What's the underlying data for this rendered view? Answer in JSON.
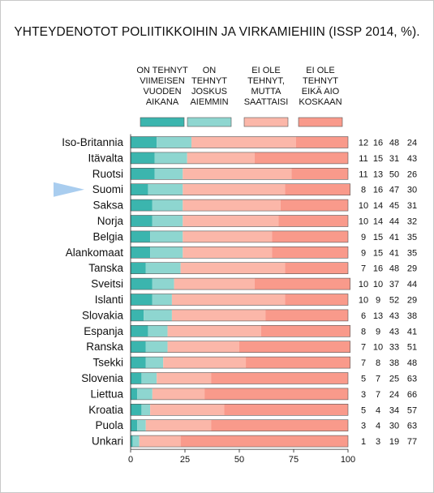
{
  "chart_data": {
    "type": "bar",
    "stacked": true,
    "orientation": "horizontal",
    "title": "YHTEYDENOTOT POLIITIKKOIHIN JA VIRKAMIEHIIN (ISSP 2014, %).",
    "categories": [
      "Iso-Britannia",
      "Itävalta",
      "Ruotsi",
      "Suomi",
      "Saksa",
      "Norja",
      "Belgia",
      "Alankomaat",
      "Tanska",
      "Sveitsi",
      "Islanti",
      "Slovakia",
      "Espanja",
      "Ranska",
      "Tsekki",
      "Slovenia",
      "Liettua",
      "Kroatia",
      "Puola",
      "Unkari"
    ],
    "highlight_category": "Suomi",
    "series": [
      {
        "name": "ON TEHNYT VIIMEISEN VUODEN AIKANA",
        "label_lines": [
          "ON TEHNYT",
          "VIIMEISEN",
          "VUODEN",
          "AIKANA"
        ],
        "color": "#3bb5ae",
        "values": [
          12,
          11,
          11,
          8,
          10,
          10,
          9,
          9,
          7,
          10,
          10,
          6,
          8,
          7,
          7,
          5,
          3,
          5,
          3,
          1
        ]
      },
      {
        "name": "ON TEHNYT JOSKUS AIEMMIN",
        "label_lines": [
          "ON",
          "TEHNYT",
          "JOSKUS",
          "AIEMMIN"
        ],
        "color": "#8ed6d0",
        "values": [
          16,
          15,
          13,
          16,
          14,
          14,
          15,
          15,
          16,
          10,
          9,
          13,
          9,
          10,
          8,
          7,
          7,
          4,
          4,
          3
        ]
      },
      {
        "name": "EI OLE TEHNYT, MUTTA SAATTAISI",
        "label_lines": [
          "EI OLE",
          "TEHNYT,",
          "MUTTA",
          "SAATTAISI"
        ],
        "color": "#fbb7a9",
        "values": [
          48,
          31,
          50,
          47,
          45,
          44,
          41,
          41,
          48,
          37,
          52,
          43,
          43,
          33,
          38,
          25,
          24,
          34,
          30,
          19
        ]
      },
      {
        "name": "EI OLE TEHNYT EIKÄ AIO KOSKAAN",
        "label_lines": [
          "EI OLE",
          "TEHNYT",
          "EIKÄ AIO",
          "KOSKAAN"
        ],
        "color": "#f99a8b",
        "values": [
          24,
          43,
          26,
          30,
          31,
          32,
          35,
          35,
          29,
          44,
          29,
          38,
          41,
          51,
          48,
          63,
          66,
          57,
          63,
          77
        ]
      }
    ],
    "xlim": [
      0,
      100
    ],
    "xticks": [
      0,
      25,
      50,
      75,
      100
    ],
    "legend_position": "top",
    "value_labels_position": "right"
  },
  "colors": {
    "text": "#111111",
    "bar_outline": "#555555",
    "highlight_arrow": "#a9cdef"
  }
}
